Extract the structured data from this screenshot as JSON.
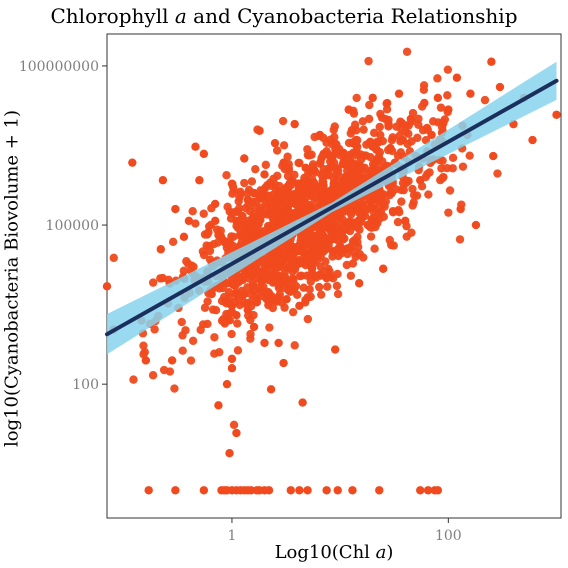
{
  "chart_data": {
    "type": "scatter",
    "title": {
      "prefix": "Chlorophyll ",
      "italic": "a",
      "suffix": " and Cyanobacteria Relationship"
    },
    "xlabel": {
      "prefix": "Log10(Chl ",
      "italic": "a",
      "suffix": ")"
    },
    "ylabel": "log10(Cyanobacteria Biovolume + 1)",
    "x_scale": "log10",
    "y_scale": "log10",
    "xlim": [
      0.07,
      1100
    ],
    "ylim": [
      0.3,
      400000000
    ],
    "x_ticks": [
      {
        "value": 1,
        "label": "1"
      },
      {
        "value": 100,
        "label": "100"
      }
    ],
    "y_ticks": [
      {
        "value": 100,
        "label": "100"
      },
      {
        "value": 100000,
        "label": "100000"
      },
      {
        "value": 100000000,
        "label": "100000000"
      }
    ],
    "grid": false,
    "colors": {
      "points": "#f04a1e",
      "fit_line": "#1b2f5c",
      "ci_band": "#87d3ee",
      "axis_text": "#808080"
    },
    "fit": {
      "method": "linear regression on log-log scale",
      "intercept_log10": 4.27,
      "slope": 1.15,
      "ci_halfwidth_log10": [
        0.38,
        0.09,
        0.36
      ],
      "x_range": [
        0.07,
        1000
      ]
    },
    "zero_row": {
      "y": 1,
      "x": [
        0.17,
        0.3,
        0.55,
        0.8,
        0.85,
        0.9,
        1.0,
        1.1,
        1.2,
        1.3,
        1.4,
        1.5,
        1.7,
        1.8,
        2.0,
        2.2,
        3.5,
        4.2,
        5.0,
        7.5,
        9.5,
        13.0,
        23.0,
        55.0,
        65.0,
        75.0,
        80.0
      ]
    },
    "points": [
      [
        0.07,
        7000
      ],
      [
        0.12,
        1500000
      ],
      [
        0.16,
        280
      ],
      [
        0.22,
        35000
      ],
      [
        0.28,
        280
      ],
      [
        0.23,
        700000
      ],
      [
        0.3,
        200000
      ],
      [
        0.36,
        60000
      ],
      [
        0.4,
        120000
      ],
      [
        0.46,
        3000000
      ],
      [
        0.5,
        700000
      ],
      [
        0.55,
        2200000
      ],
      [
        0.6,
        12000
      ],
      [
        0.62,
        40000
      ],
      [
        0.65,
        5000
      ],
      [
        0.7,
        120000
      ],
      [
        0.7,
        250000
      ],
      [
        0.75,
        40
      ],
      [
        0.8,
        8000
      ],
      [
        0.8,
        20000
      ],
      [
        0.85,
        50000
      ],
      [
        0.9,
        100
      ],
      [
        0.9,
        8000
      ],
      [
        0.95,
        5
      ],
      [
        1.0,
        200
      ],
      [
        1.0,
        300
      ],
      [
        1.0,
        3000
      ],
      [
        1.0,
        15000
      ],
      [
        1.0,
        600000
      ],
      [
        1.1,
        12
      ],
      [
        1.1,
        2000
      ],
      [
        1.1,
        120000
      ],
      [
        1.2,
        40000
      ],
      [
        1.3,
        5000
      ],
      [
        1.3,
        1800000
      ],
      [
        1.4,
        2500
      ],
      [
        1.4,
        300000
      ],
      [
        1.5,
        40000
      ],
      [
        1.6,
        1200
      ],
      [
        1.6,
        400000
      ],
      [
        1.7,
        3500
      ],
      [
        1.8,
        150000
      ],
      [
        1.8,
        6000000
      ],
      [
        2.0,
        600
      ],
      [
        2.0,
        20000
      ],
      [
        2.0,
        900000
      ],
      [
        2.1,
        4000
      ],
      [
        2.2,
        250000
      ],
      [
        2.3,
        80
      ],
      [
        2.4,
        12000
      ],
      [
        2.5,
        3500000
      ],
      [
        2.7,
        600
      ],
      [
        2.8,
        70000
      ],
      [
        3.0,
        1500000
      ],
      [
        3.0,
        250
      ],
      [
        3.2,
        4000
      ],
      [
        3.4,
        600000
      ],
      [
        3.6,
        20000
      ],
      [
        3.8,
        8000000
      ],
      [
        4.0,
        250000
      ],
      [
        4.2,
        3000
      ],
      [
        4.5,
        45
      ],
      [
        4.8,
        1200000
      ],
      [
        5.0,
        60000
      ],
      [
        5.5,
        15000
      ],
      [
        6.0,
        400000
      ],
      [
        6.5,
        5000000
      ],
      [
        7.0,
        800000
      ],
      [
        7.5,
        10000
      ],
      [
        8.0,
        120000
      ],
      [
        8.5,
        2000000
      ],
      [
        9.0,
        450
      ],
      [
        10.0,
        40000
      ],
      [
        11.0,
        700000
      ],
      [
        12.0,
        15000000
      ],
      [
        13.0,
        250000
      ],
      [
        14.0,
        4000000
      ],
      [
        15.0,
        8000
      ],
      [
        16.0,
        1200000
      ],
      [
        18.0,
        100000
      ],
      [
        20.0,
        3000000
      ],
      [
        20.0,
        25000000
      ],
      [
        22.0,
        600000
      ],
      [
        25.0,
        15000
      ],
      [
        28.0,
        8000000
      ],
      [
        30.0,
        400000
      ],
      [
        32.0,
        1500000
      ],
      [
        35.0,
        30000000
      ],
      [
        38.0,
        4000000
      ],
      [
        40.0,
        120000
      ],
      [
        45.0,
        10000000
      ],
      [
        50.0,
        2000000
      ],
      [
        55.0,
        700000
      ],
      [
        60.0,
        20000000
      ],
      [
        70.0,
        5000000
      ],
      [
        80.0,
        25000000
      ],
      [
        90.0,
        800000
      ],
      [
        100.0,
        15000000
      ],
      [
        120.0,
        60000000
      ],
      [
        130.0,
        200000
      ],
      [
        150.0,
        5000000
      ],
      [
        160.0,
        30000000
      ],
      [
        180.0,
        100000
      ],
      [
        250.0,
        120000000
      ],
      [
        260.0,
        2000000
      ],
      [
        300.0,
        40000000
      ],
      [
        400.0,
        8000000
      ],
      [
        500.0,
        25000000
      ],
      [
        600.0,
        4000000
      ],
      [
        1000.0,
        12000000
      ]
    ],
    "cloud": {
      "count": 1500,
      "x_log10_mean": 0.7,
      "x_log10_sd": 0.55,
      "residual_sd": 0.65,
      "seed": 7
    }
  }
}
